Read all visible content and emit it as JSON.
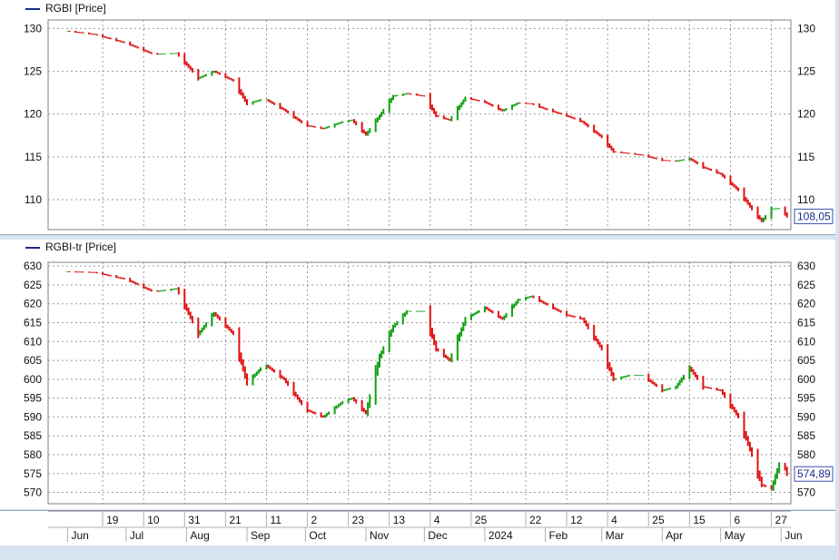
{
  "colors": {
    "up": "#10a010",
    "down": "#e01010",
    "legend_line": "#1a2a8a",
    "background": "#d7e3f1"
  },
  "chart_data": [
    {
      "type": "line",
      "name": "RGBI",
      "legend": "RGBI [Price]",
      "last_value_label": "108,05",
      "ylim": [
        106.5,
        131
      ],
      "yticks": [
        110,
        115,
        120,
        125,
        130
      ],
      "grid": true,
      "x": [
        "2023-06-01",
        "2023-06-15",
        "2023-07-01",
        "2023-07-15",
        "2023-07-27",
        "2023-08-07",
        "2023-08-15",
        "2023-08-25",
        "2023-09-01",
        "2023-09-10",
        "2023-09-20",
        "2023-10-01",
        "2023-10-10",
        "2023-10-20",
        "2023-10-25",
        "2023-11-01",
        "2023-11-08",
        "2023-11-15",
        "2023-11-22",
        "2023-12-01",
        "2023-12-07",
        "2023-12-14",
        "2023-12-22",
        "2024-01-01",
        "2024-01-10",
        "2024-01-18",
        "2024-01-25",
        "2024-02-01",
        "2024-02-12",
        "2024-02-20",
        "2024-03-01",
        "2024-03-07",
        "2024-03-15",
        "2024-03-22",
        "2024-04-01",
        "2024-04-08",
        "2024-04-15",
        "2024-04-22",
        "2024-05-01",
        "2024-05-10",
        "2024-05-17",
        "2024-05-22",
        "2024-05-27",
        "2024-06-01",
        "2024-06-04"
      ],
      "y": [
        129.7,
        129.3,
        128.3,
        127.0,
        127.1,
        124.2,
        125.0,
        123.9,
        121.2,
        121.8,
        120.5,
        118.7,
        118.3,
        119.1,
        119.3,
        117.6,
        119.8,
        122.1,
        122.4,
        122.1,
        119.8,
        119.3,
        121.9,
        121.4,
        120.4,
        121.3,
        121.2,
        120.6,
        119.8,
        119.1,
        117.3,
        115.6,
        115.4,
        115.2,
        114.6,
        114.5,
        114.8,
        113.8,
        113.0,
        111.1,
        108.9,
        107.5,
        108.9,
        109.0,
        108.05
      ]
    },
    {
      "type": "line",
      "name": "RGBI-tr",
      "legend": "RGBI-tr [Price]",
      "last_value_label": "574,89",
      "ylim": [
        567,
        631
      ],
      "yticks": [
        570,
        575,
        580,
        585,
        590,
        595,
        600,
        605,
        610,
        615,
        620,
        625,
        630
      ],
      "grid": true,
      "x": [
        "2023-06-01",
        "2023-06-15",
        "2023-07-01",
        "2023-07-15",
        "2023-07-27",
        "2023-08-07",
        "2023-08-15",
        "2023-08-25",
        "2023-09-01",
        "2023-09-10",
        "2023-09-20",
        "2023-10-01",
        "2023-10-10",
        "2023-10-20",
        "2023-10-25",
        "2023-11-01",
        "2023-11-08",
        "2023-11-15",
        "2023-11-22",
        "2023-12-01",
        "2023-12-07",
        "2023-12-14",
        "2023-12-22",
        "2024-01-01",
        "2024-01-10",
        "2024-01-18",
        "2024-01-25",
        "2024-02-01",
        "2024-02-12",
        "2024-02-20",
        "2024-03-01",
        "2024-03-07",
        "2024-03-15",
        "2024-03-22",
        "2024-04-01",
        "2024-04-08",
        "2024-04-15",
        "2024-04-22",
        "2024-05-01",
        "2024-05-10",
        "2024-05-17",
        "2024-05-22",
        "2024-05-27",
        "2024-06-01",
        "2024-06-04"
      ],
      "y": [
        628.5,
        628.3,
        626.5,
        623.2,
        624.0,
        612.0,
        617.5,
        612.0,
        599.0,
        604.0,
        600.0,
        592.0,
        590.0,
        594.0,
        595.0,
        591.0,
        606.0,
        614.0,
        618.0,
        618.0,
        608.0,
        605.0,
        616.0,
        619.0,
        616.0,
        621.0,
        622.0,
        620.0,
        617.0,
        616.0,
        608.0,
        600.0,
        601.0,
        601.0,
        597.0,
        598.0,
        603.0,
        598.0,
        597.0,
        590.0,
        580.0,
        572.0,
        571.0,
        579.0,
        574.89
      ]
    }
  ],
  "x_axis": {
    "day_labels": [
      "19",
      "10",
      "31",
      "21",
      "11",
      "2",
      "23",
      "13",
      "4",
      "25",
      "22",
      "12",
      "4",
      "25",
      "15",
      "6",
      "27"
    ],
    "month_labels": [
      "Jun",
      "Jul",
      "Aug",
      "Sep",
      "Oct",
      "Nov",
      "Dec",
      "2024",
      "Feb",
      "Mar",
      "Apr",
      "May",
      "Jun"
    ]
  }
}
